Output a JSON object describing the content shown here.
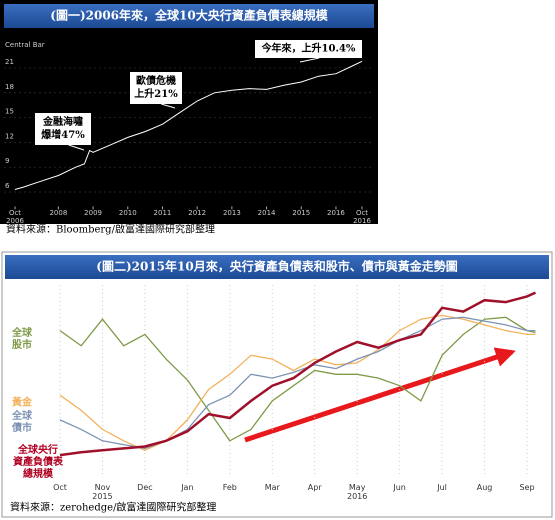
{
  "chart_data": [
    {
      "type": "line",
      "title": "(圖一)2006年來，全球10大央行資產負債表總規模",
      "source": "資料來源：Bloomberg/啟富達國際研究部整理",
      "x": [
        2006.75,
        2007,
        2007.5,
        2008,
        2008.5,
        2008.75,
        2008.9,
        2009,
        2009.5,
        2010,
        2010.5,
        2011,
        2011.5,
        2012,
        2012.5,
        2013,
        2013.5,
        2014,
        2014.5,
        2015,
        2015.5,
        2016,
        2016.5,
        2016.75
      ],
      "series": [
        {
          "name": "Central Bar",
          "color": "#ffffff",
          "values": [
            6.3,
            6.6,
            7.3,
            8.0,
            9.0,
            9.4,
            11.0,
            10.8,
            11.7,
            12.6,
            13.3,
            14.2,
            15.6,
            17.0,
            18.0,
            18.3,
            18.5,
            18.4,
            18.9,
            19.3,
            20.0,
            20.3,
            21.3,
            21.8
          ]
        }
      ],
      "xlim": [
        2006.75,
        2016.75
      ],
      "xticks": [
        {
          "value": 2006.75,
          "label": "Oct 2006"
        },
        2008,
        2009,
        2010,
        2011,
        2012,
        2013,
        2014,
        2015,
        2016,
        {
          "value": 2016.75,
          "label": "Oct 2016"
        }
      ],
      "ylim": [
        4.5,
        24.5
      ],
      "yticks": [
        6,
        9,
        12,
        15,
        18,
        21
      ],
      "grid": true,
      "annotations": [
        "今年來，上升10.4%",
        "歐債危機\n上升21%",
        "金融海嘯\n爆增47%"
      ]
    },
    {
      "type": "line",
      "title": "(圖二)2015年10月來，央行資產負債表和股市、債市與黃金走勢圖",
      "source": "資料來源：zerohedge/啟富達國際研究部整理",
      "x": [
        0,
        0.5,
        1,
        1.5,
        2,
        2.5,
        3,
        3.5,
        4,
        4.5,
        5,
        5.5,
        6,
        6.5,
        7,
        7.5,
        8,
        8.5,
        9,
        9.5,
        10,
        10.5,
        11,
        11.2
      ],
      "series": [
        {
          "name": "全球\n股市",
          "color": "#7f9a48",
          "values": [
            76,
            68,
            82,
            68,
            74,
            61,
            50,
            34,
            18,
            24,
            39,
            47,
            55,
            53,
            53,
            51,
            47,
            39,
            63,
            74,
            82,
            83,
            76,
            75
          ]
        },
        {
          "name": "黃金",
          "color": "#f2b25c",
          "values": [
            42,
            34,
            24,
            18,
            13,
            18,
            29,
            45,
            53,
            63,
            61,
            55,
            61,
            58,
            59,
            66,
            76,
            82,
            84,
            82,
            79,
            76,
            74,
            74
          ]
        },
        {
          "name": "全球\n債市",
          "color": "#7d93b3",
          "values": [
            29,
            24,
            18,
            16,
            14,
            18,
            24,
            37,
            42,
            53,
            51,
            54,
            58,
            56,
            61,
            65,
            71,
            76,
            82,
            83,
            81,
            79,
            76,
            76
          ]
        },
        {
          "name": "全球央行\n資產負債表\n總規模",
          "color": "#a0102a",
          "values": [
            10.5,
            12,
            13,
            14,
            15,
            18,
            23,
            32,
            30,
            39,
            47,
            51,
            59,
            65,
            70,
            67,
            71,
            74,
            88,
            86,
            92,
            91,
            94,
            96
          ]
        }
      ],
      "xlim": [
        0,
        11
      ],
      "xticks": [
        {
          "value": 0,
          "label": "Oct"
        },
        {
          "value": 1,
          "label": "Nov 2015"
        },
        {
          "value": 2,
          "label": "Dec"
        },
        {
          "value": 3,
          "label": "Jan"
        },
        {
          "value": 4,
          "label": "Feb"
        },
        {
          "value": 5,
          "label": "Mar"
        },
        {
          "value": 6,
          "label": "Apr"
        },
        {
          "value": 7,
          "label": "May 2016"
        },
        {
          "value": 8,
          "label": "Jun"
        },
        {
          "value": 9,
          "label": "Jul"
        },
        {
          "value": 10,
          "label": "Aug"
        },
        {
          "value": 11,
          "label": "Sep"
        }
      ],
      "ylim": [
        0,
        100
      ],
      "grid": true
    }
  ]
}
